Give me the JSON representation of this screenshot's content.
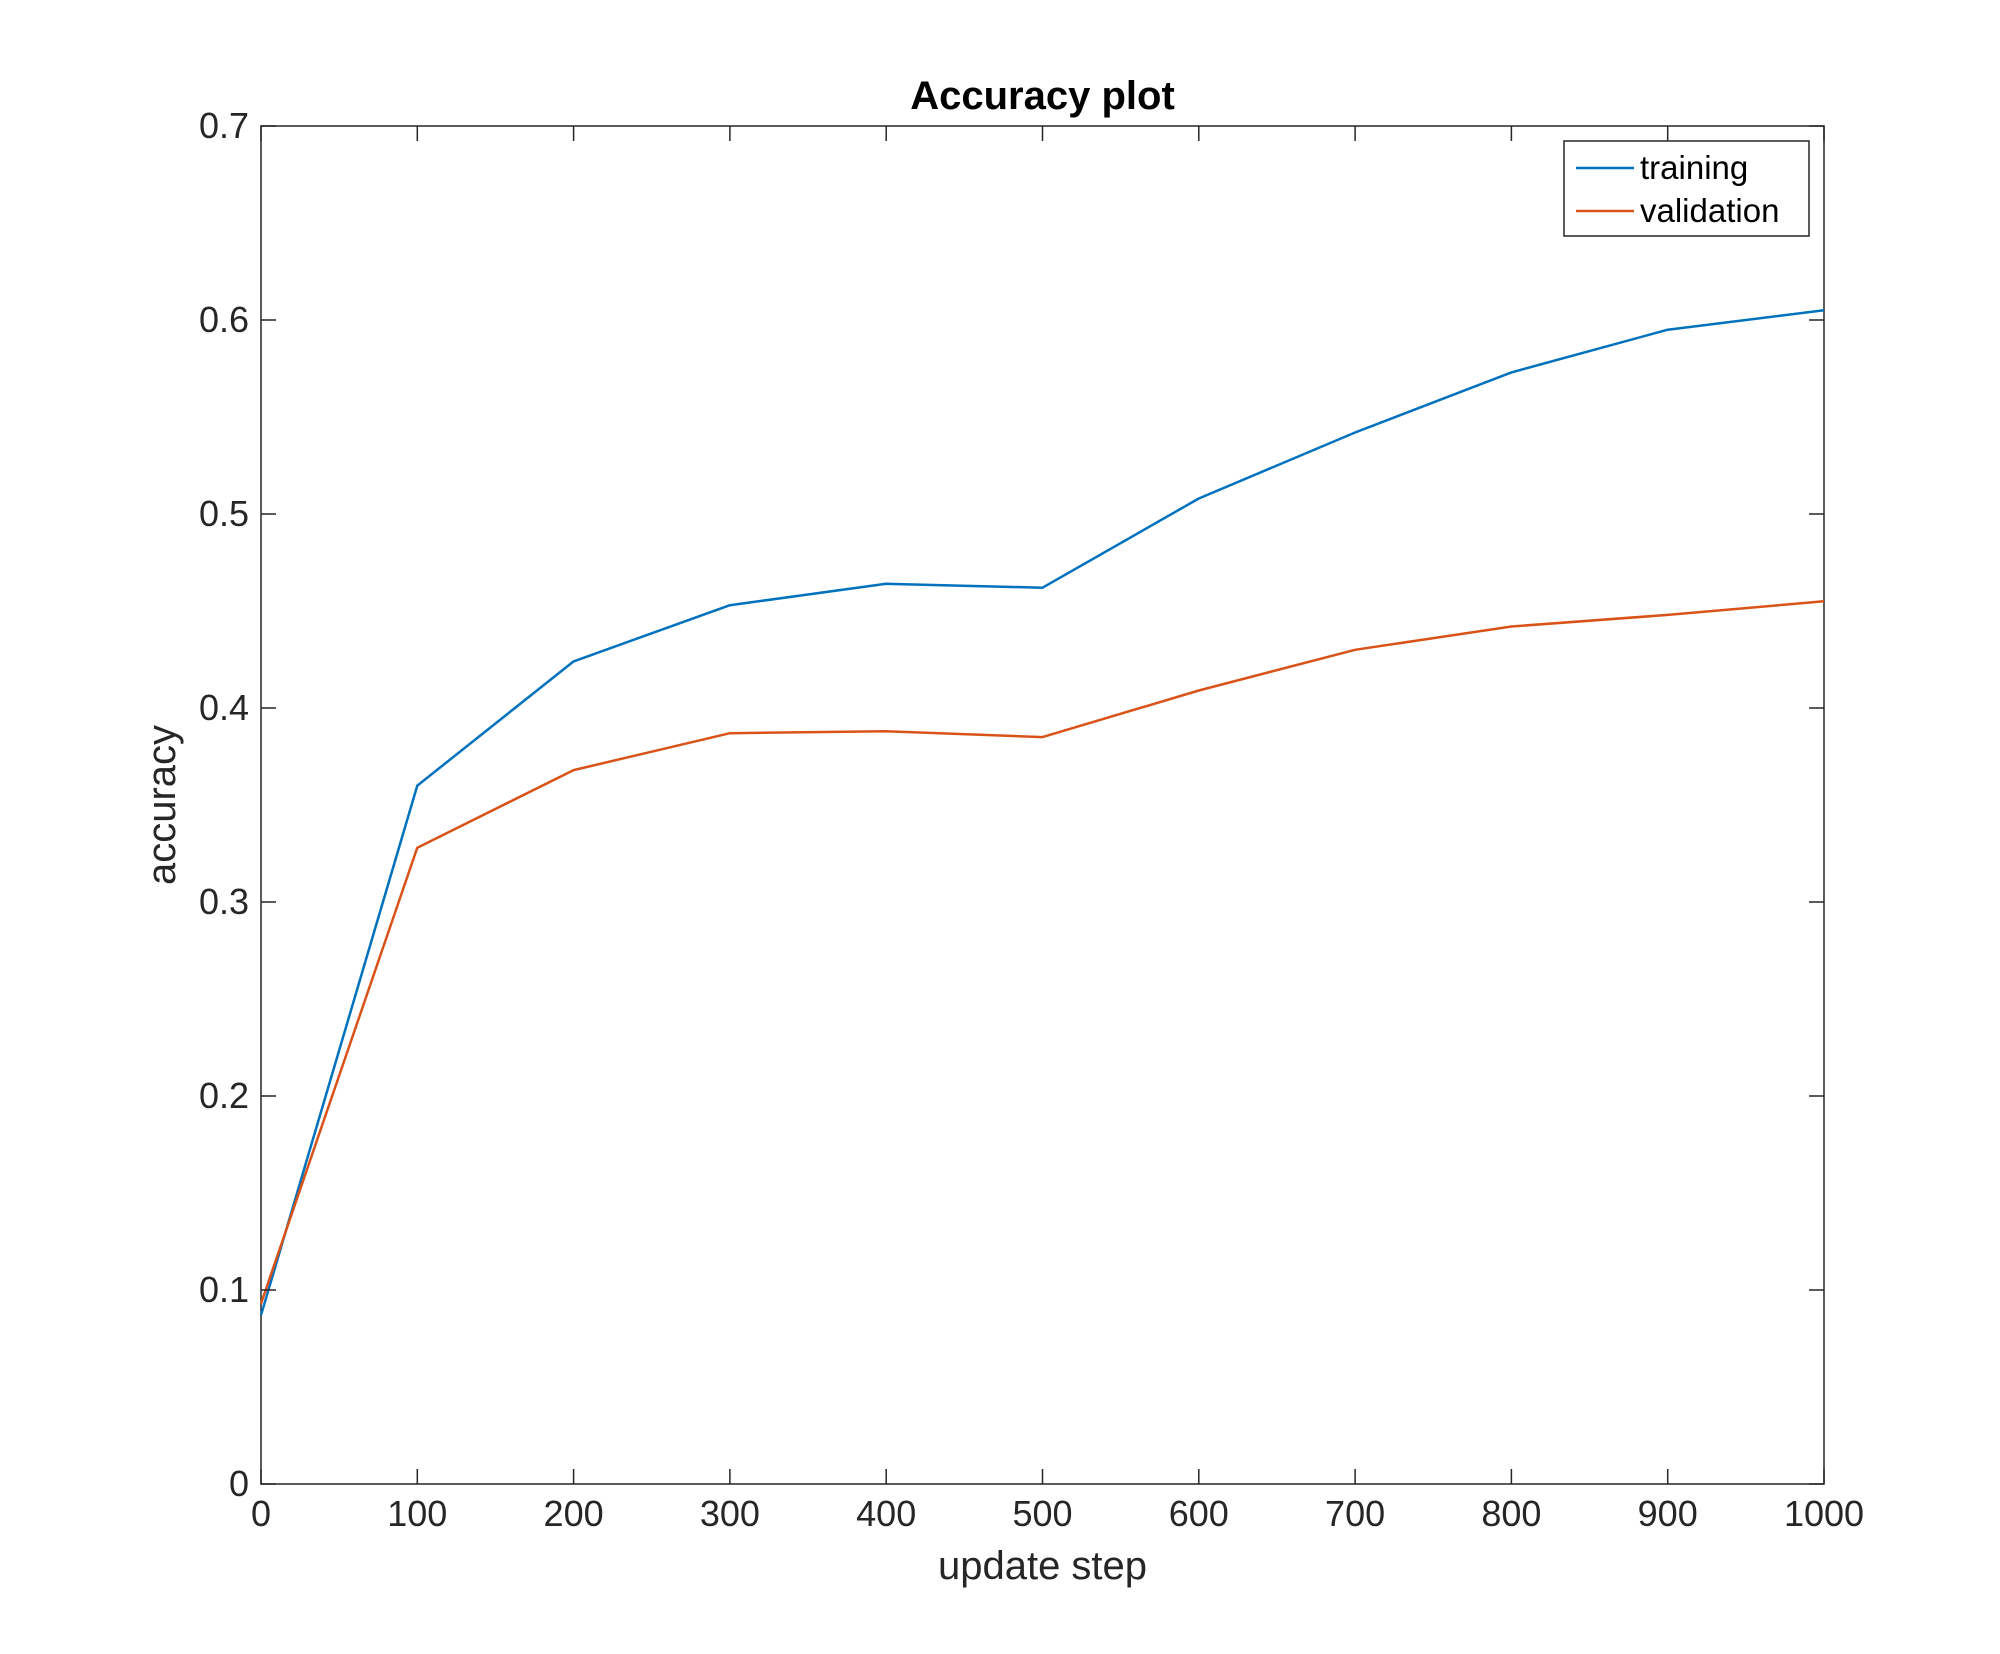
{
  "chart_data": {
    "type": "line",
    "title": "Accuracy plot",
    "xlabel": "update step",
    "ylabel": "accuracy",
    "xlim": [
      0,
      1000
    ],
    "ylim": [
      0,
      0.7
    ],
    "x_ticks": [
      0,
      100,
      200,
      300,
      400,
      500,
      600,
      700,
      800,
      900,
      1000
    ],
    "y_ticks": [
      0,
      0.1,
      0.2,
      0.3,
      0.4,
      0.5,
      0.6,
      0.7
    ],
    "x_tick_labels": [
      "0",
      "100",
      "200",
      "300",
      "400",
      "500",
      "600",
      "700",
      "800",
      "900",
      "1000"
    ],
    "y_tick_labels": [
      "0",
      "0.1",
      "0.2",
      "0.3",
      "0.4",
      "0.5",
      "0.6",
      "0.7"
    ],
    "grid": false,
    "legend_position": "top-right",
    "x": [
      0,
      100,
      200,
      300,
      400,
      500,
      600,
      700,
      800,
      900,
      1000
    ],
    "series": [
      {
        "name": "training",
        "color": "#0072BD",
        "values": [
          0.087,
          0.36,
          0.424,
          0.453,
          0.464,
          0.462,
          0.508,
          0.542,
          0.573,
          0.595,
          0.605
        ]
      },
      {
        "name": "validation",
        "color": "#D95319",
        "values": [
          0.093,
          0.328,
          0.368,
          0.387,
          0.388,
          0.385,
          0.409,
          0.43,
          0.442,
          0.448,
          0.455
        ]
      }
    ]
  }
}
